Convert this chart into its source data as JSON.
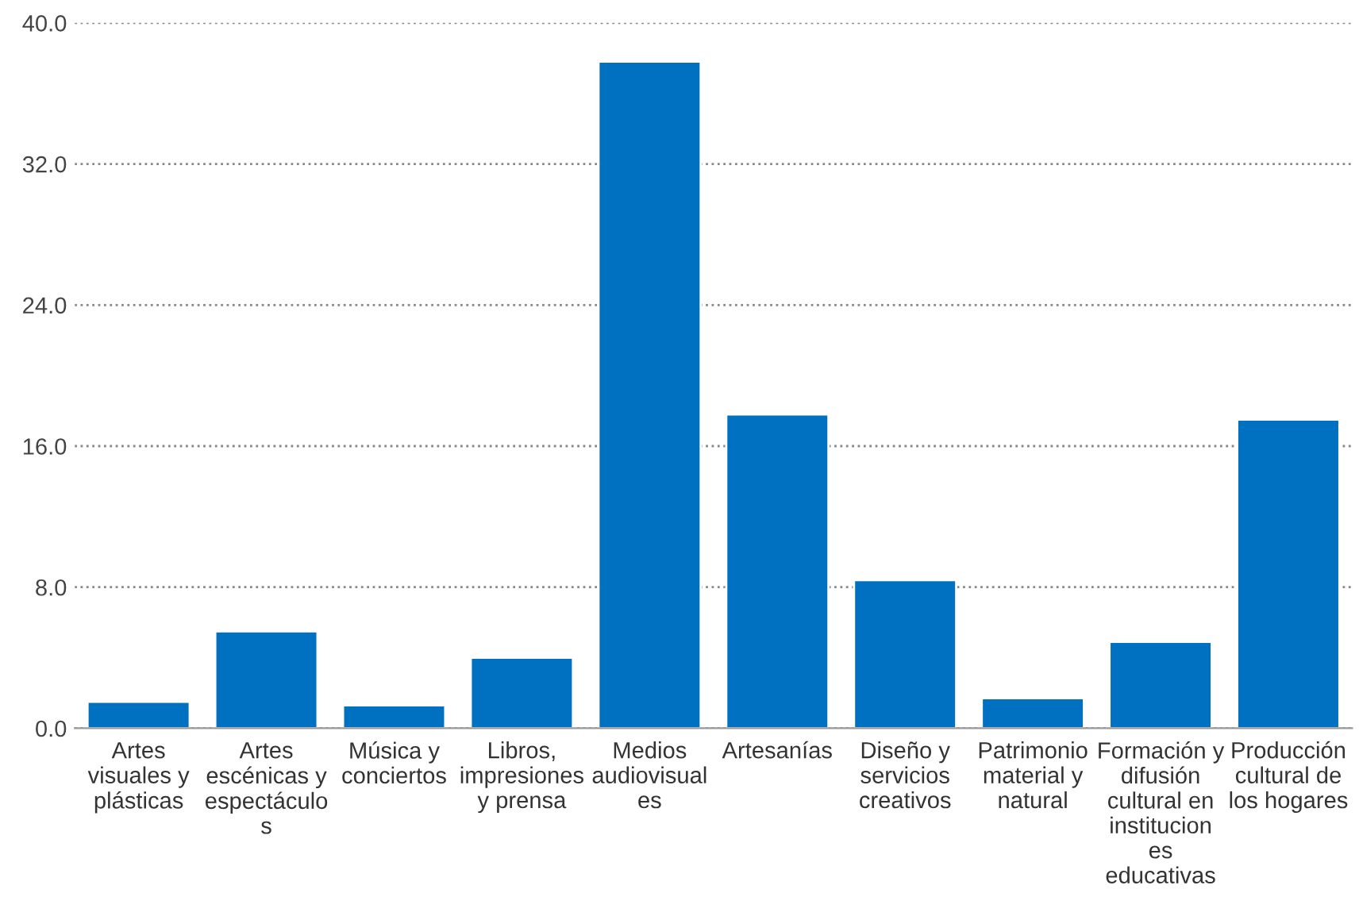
{
  "chart_data": {
    "type": "bar",
    "categories": [
      "Artes visuales y plásticas",
      "Artes escénicas y espectáculos",
      "Música y conciertos",
      "Libros, impresiones y prensa",
      "Medios audiovisuales",
      "Artesanías",
      "Diseño y servicios creativos",
      "Patrimonio material y natural",
      "Formación y difusión cultural en instituciones educativas",
      "Producción cultural de los hogares"
    ],
    "values": [
      1.5,
      5.5,
      1.3,
      4.0,
      37.8,
      17.8,
      8.4,
      1.7,
      4.9,
      17.5
    ],
    "color": "#0070c0",
    "ylim": [
      0,
      40
    ],
    "yticks": [
      {
        "value": 0,
        "label": "0.0"
      },
      {
        "value": 8,
        "label": "8.0"
      },
      {
        "value": 16,
        "label": "16.0"
      },
      {
        "value": 24,
        "label": "24.0"
      },
      {
        "value": 32,
        "label": "32.0"
      },
      {
        "value": 40,
        "label": "40.0"
      }
    ],
    "grid": "y"
  }
}
